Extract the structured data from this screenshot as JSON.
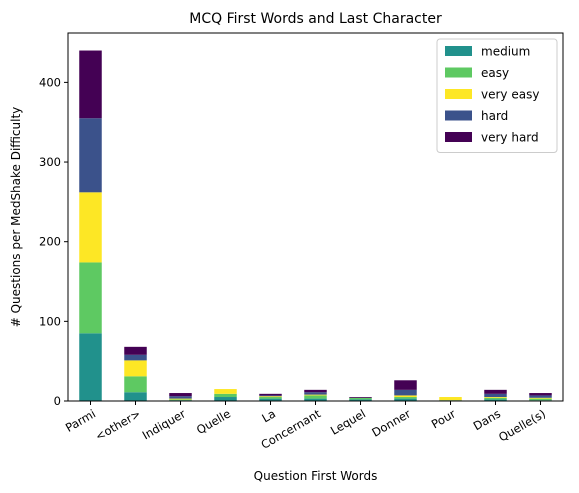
{
  "chart_data": {
    "type": "bar",
    "stacked": true,
    "title": "MCQ First Words and Last Character",
    "xlabel": "Question First Words",
    "ylabel": "# Questions per MedShake Difficulty",
    "ylim": [
      0,
      462
    ],
    "yticks": [
      0,
      100,
      200,
      300,
      400
    ],
    "legend_position": "top-right",
    "categories": [
      "Parmi",
      "<other>",
      "Indiquer",
      "Quelle",
      "La",
      "Concernant",
      "Lequel",
      "Donner",
      "Pour",
      "Dans",
      "Quelle(s)"
    ],
    "series": [
      {
        "name": "medium",
        "color": "#21918c",
        "values": [
          85,
          11,
          1,
          5,
          3,
          3,
          2,
          3,
          1,
          2,
          1
        ]
      },
      {
        "name": "easy",
        "color": "#5ec962",
        "values": [
          89,
          20,
          1,
          4,
          2,
          4,
          2,
          2,
          0,
          2,
          2
        ]
      },
      {
        "name": "very easy",
        "color": "#fde725",
        "values": [
          88,
          20,
          1,
          6,
          1,
          1,
          0,
          2,
          4,
          1,
          1
        ]
      },
      {
        "name": "hard",
        "color": "#3b528b",
        "values": [
          93,
          7,
          3,
          0,
          1,
          3,
          0,
          7,
          0,
          4,
          3
        ]
      },
      {
        "name": "very hard",
        "color": "#440154",
        "values": [
          85,
          10,
          4,
          0,
          2,
          3,
          1,
          12,
          0,
          5,
          3
        ]
      }
    ]
  }
}
